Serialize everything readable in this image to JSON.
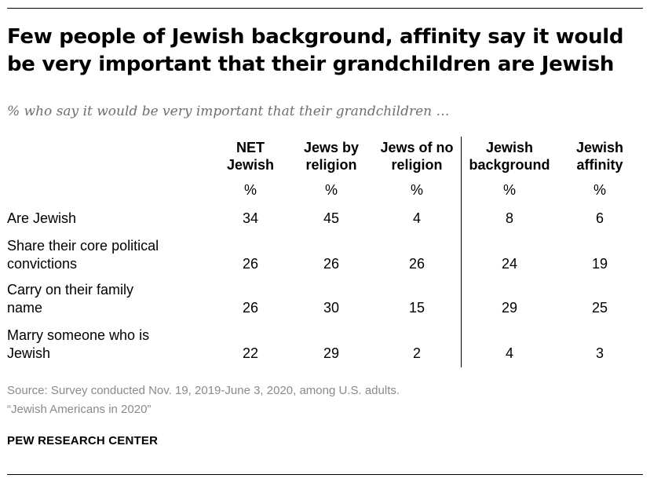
{
  "chart_data": {
    "type": "table",
    "title": "Few people of Jewish background, affinity say it would be very important that their grandchildren are Jewish",
    "subtitle": "% who say it would be very important that their grandchildren …",
    "columns": [
      {
        "line1": "NET",
        "line2": "Jewish",
        "unit": "%"
      },
      {
        "line1": "Jews by",
        "line2": "religion",
        "unit": "%"
      },
      {
        "line1": "Jews of no",
        "line2": "religion",
        "unit": "%"
      },
      {
        "line1": "Jewish",
        "line2": "background",
        "unit": "%"
      },
      {
        "line1": "Jewish",
        "line2": "affinity",
        "unit": "%"
      }
    ],
    "rows": [
      {
        "label": [
          "Are Jewish"
        ],
        "values": [
          34,
          45,
          4,
          8,
          6
        ]
      },
      {
        "label": [
          "Share their core political",
          "convictions"
        ],
        "values": [
          26,
          26,
          26,
          24,
          19
        ]
      },
      {
        "label": [
          "Carry on their family",
          "name"
        ],
        "values": [
          26,
          30,
          15,
          29,
          25
        ]
      },
      {
        "label": [
          "Marry someone who is",
          "Jewish"
        ],
        "values": [
          22,
          29,
          2,
          4,
          3
        ]
      }
    ]
  },
  "footer": {
    "source_line1": "Source: Survey conducted Nov. 19, 2019-June 3, 2020, among U.S. adults.",
    "source_line2": "“Jewish Americans in 2020”",
    "brand": "PEW RESEARCH CENTER"
  }
}
